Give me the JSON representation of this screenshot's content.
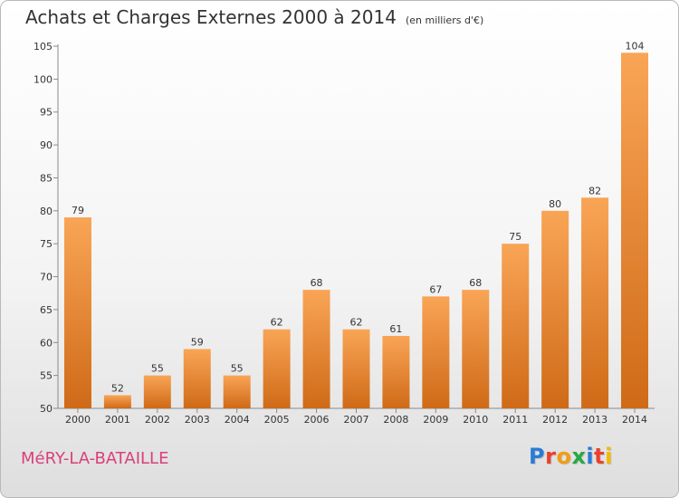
{
  "header": {
    "title": "Achats et Charges Externes 2000 à 2014",
    "subtitle": "(en milliers d'€)"
  },
  "footer": {
    "commune": "MéRY-LA-BATAILLE",
    "brand": "Proxiti",
    "brand_colors": [
      "#2a7bd6",
      "#e8412c",
      "#f39c12",
      "#27a844",
      "#2a7bd6",
      "#e8412c",
      "#f5b800"
    ]
  },
  "colors": {
    "bar_light": "#f9a556",
    "bar_dark": "#cf6a17",
    "axis": "#8a8a8a",
    "grid": "#cccccc"
  },
  "chart_data": {
    "type": "bar",
    "title": "Achats et Charges Externes 2000 à 2014",
    "subtitle": "(en milliers d'€)",
    "xlabel": "",
    "ylabel": "",
    "categories": [
      "2000",
      "2001",
      "2002",
      "2003",
      "2004",
      "2005",
      "2006",
      "2007",
      "2008",
      "2009",
      "2010",
      "2011",
      "2012",
      "2013",
      "2014"
    ],
    "values": [
      79,
      52,
      55,
      59,
      55,
      62,
      68,
      62,
      61,
      67,
      68,
      75,
      80,
      82,
      104
    ],
    "ylim": [
      50,
      105
    ],
    "yticks": [
      50,
      55,
      60,
      65,
      70,
      75,
      80,
      85,
      90,
      95,
      100,
      105
    ],
    "grid": false,
    "data_labels": true
  }
}
